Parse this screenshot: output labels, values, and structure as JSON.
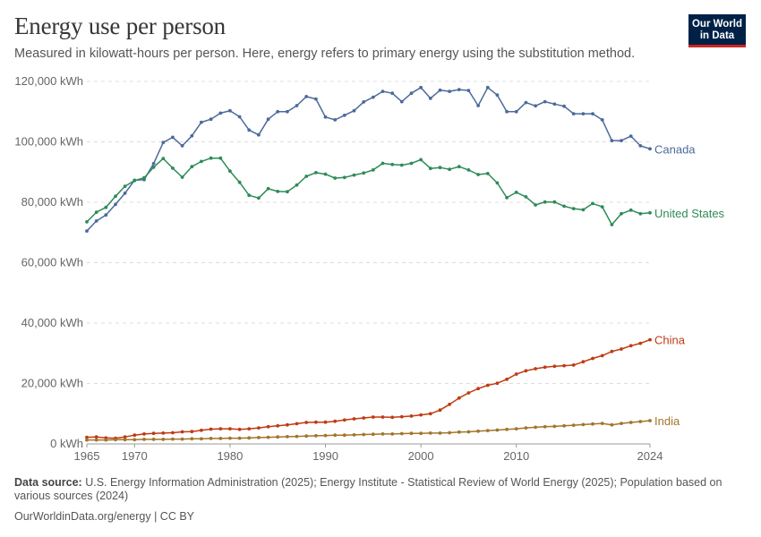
{
  "header": {
    "title": "Energy use per person",
    "subtitle": "Measured in kilowatt-hours per person. Here, energy refers to primary energy using the substitution method.",
    "logo_line1": "Our World",
    "logo_line2": "in Data"
  },
  "footer": {
    "source_label": "Data source:",
    "source_text": "U.S. Energy Information Administration (2025); Energy Institute - Statistical Review of World Energy (2025); Population based on various sources (2024)",
    "url": "OurWorldinData.org/energy | CC BY"
  },
  "chart_data": {
    "type": "line",
    "title": "Energy use per person",
    "ylim": [
      0,
      120000
    ],
    "xlim": [
      1965,
      2024
    ],
    "y_ticks": [
      {
        "value": 0,
        "label": "0 kWh"
      },
      {
        "value": 20000,
        "label": "20,000 kWh"
      },
      {
        "value": 40000,
        "label": "40,000 kWh"
      },
      {
        "value": 60000,
        "label": "60,000 kWh"
      },
      {
        "value": 80000,
        "label": "80,000 kWh"
      },
      {
        "value": 100000,
        "label": "100,000 kWh"
      },
      {
        "value": 120000,
        "label": "120,000 kWh"
      }
    ],
    "x_ticks": [
      1965,
      1970,
      1980,
      1990,
      2000,
      2010,
      2024
    ],
    "grid": "horizontal dashed",
    "series": [
      {
        "name": "Canada",
        "color": "#4c6a9c",
        "start_year": 1965,
        "values": [
          70500,
          73800,
          75800,
          79300,
          83000,
          87300,
          87500,
          92800,
          99800,
          101500,
          98700,
          102000,
          106500,
          107500,
          109500,
          110300,
          108300,
          103900,
          102300,
          107500,
          110000,
          110000,
          112000,
          115000,
          114200,
          108200,
          107300,
          108800,
          110300,
          113200,
          114800,
          116700,
          116100,
          113300,
          116100,
          118000,
          114400,
          117100,
          116700,
          117300,
          117000,
          112000,
          118000,
          115500,
          110000,
          110000,
          113000,
          111900,
          113300,
          112500,
          111800,
          109300,
          109300,
          109300,
          107300,
          100400,
          100400,
          101900,
          98700,
          97700
        ]
      },
      {
        "name": "United States",
        "color": "#2e8b57",
        "start_year": 1965,
        "values": [
          73500,
          76700,
          78300,
          82000,
          85300,
          87200,
          88100,
          91600,
          94500,
          91300,
          88300,
          91800,
          93500,
          94600,
          94600,
          90300,
          86600,
          82300,
          81400,
          84500,
          83600,
          83500,
          85700,
          88600,
          89800,
          89300,
          88000,
          88200,
          89000,
          89700,
          90700,
          92900,
          92500,
          92300,
          92900,
          94100,
          91200,
          91500,
          90900,
          91800,
          90700,
          89200,
          89500,
          86400,
          81500,
          83300,
          81800,
          79100,
          80100,
          80100,
          78700,
          77900,
          77500,
          79600,
          78500,
          72600,
          76200,
          77400,
          76200,
          76500
        ]
      },
      {
        "name": "China",
        "color": "#bf3b12",
        "start_year": 1965,
        "values": [
          2200,
          2300,
          2000,
          1900,
          2300,
          2900,
          3300,
          3500,
          3600,
          3700,
          4000,
          4100,
          4500,
          4900,
          5000,
          5000,
          4800,
          5000,
          5300,
          5700,
          6000,
          6300,
          6700,
          7100,
          7200,
          7200,
          7500,
          7900,
          8300,
          8600,
          8900,
          8900,
          8800,
          9000,
          9200,
          9600,
          10000,
          11200,
          13100,
          15200,
          16900,
          18300,
          19400,
          20100,
          21400,
          23100,
          24200,
          24900,
          25400,
          25700,
          25900,
          26100,
          27200,
          28300,
          29200,
          30600,
          31400,
          32500,
          33300,
          34500
        ]
      },
      {
        "name": "India",
        "color": "#a2752b",
        "start_year": 1965,
        "values": [
          1300,
          1300,
          1300,
          1400,
          1400,
          1400,
          1500,
          1500,
          1500,
          1600,
          1600,
          1700,
          1700,
          1800,
          1800,
          1900,
          1900,
          2000,
          2100,
          2200,
          2300,
          2400,
          2500,
          2600,
          2700,
          2800,
          2900,
          2900,
          3000,
          3100,
          3200,
          3300,
          3300,
          3400,
          3500,
          3500,
          3600,
          3600,
          3700,
          3900,
          4000,
          4200,
          4400,
          4600,
          4800,
          5000,
          5300,
          5500,
          5700,
          5800,
          6000,
          6200,
          6400,
          6600,
          6800,
          6300,
          6800,
          7100,
          7400,
          7700
        ]
      }
    ]
  }
}
